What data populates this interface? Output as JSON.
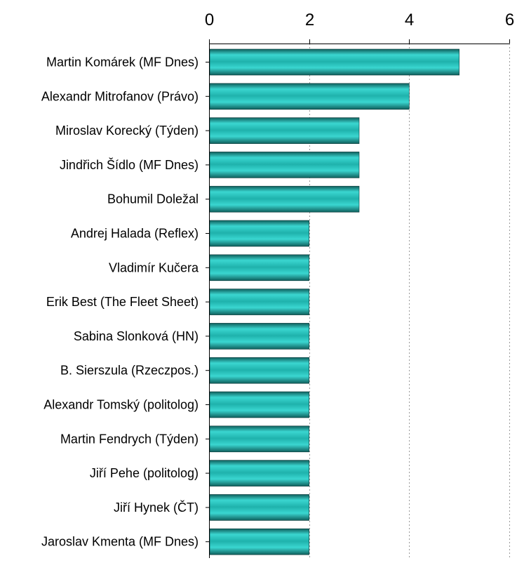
{
  "chart_data": {
    "type": "bar",
    "orientation": "horizontal",
    "title": "",
    "xlabel": "",
    "ylabel": "",
    "x_axis_position": "top",
    "xlim": [
      0,
      6
    ],
    "x_ticks": [
      "0",
      "2",
      "4",
      "6"
    ],
    "grid": true,
    "legend": "none",
    "categories": [
      "Martin Komárek (MF Dnes)",
      "Alexandr Mitrofanov (Právo)",
      "Miroslav Korecký (Týden)",
      "Jindřich Šídlo (MF Dnes)",
      "Bohumil Doležal",
      "Andrej Halada (Reflex)",
      "Vladimír Kučera",
      "Erik Best (The Fleet Sheet)",
      "Sabina Slonková (HN)",
      "B. Sierszula (Rzeczpos.)",
      "Alexandr Tomský (politolog)",
      "Martin Fendrych (Týden)",
      "Jiří Pehe (politolog)",
      "Jiří Hynek (ČT)",
      "Jaroslav Kmenta (MF Dnes)"
    ],
    "values": [
      5,
      4,
      3,
      3,
      3,
      2,
      2,
      2,
      2,
      2,
      2,
      2,
      2,
      2,
      2
    ],
    "colors": {
      "bar_light": "#3ad6d0",
      "bar_mid": "#1fb2ac",
      "bar_dark": "#0f5f5c",
      "bar_edge": "#0d3b3b",
      "grid": "#9a9a9a",
      "axis": "#000000"
    }
  }
}
